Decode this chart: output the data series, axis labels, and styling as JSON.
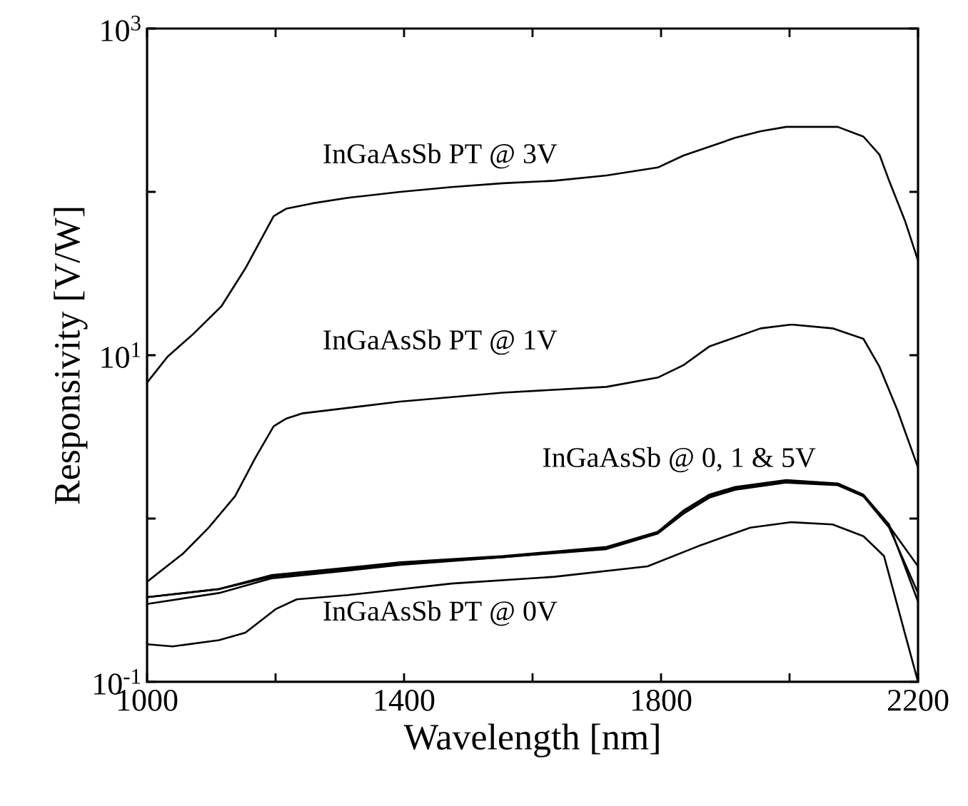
{
  "chart_data": {
    "type": "line",
    "xlabel": "Wavelength [nm]",
    "ylabel": "Responsivity [V/W]",
    "log": "y",
    "grid": false,
    "marker": "none",
    "line_style": "solid",
    "xlim": [
      1000,
      2200
    ],
    "ylim": [
      0.1,
      1000
    ],
    "xticks": [
      1000,
      {
        "value": 1200,
        "label": null
      },
      1400,
      {
        "value": 1600,
        "label": null
      },
      1800,
      {
        "value": 2000,
        "label": null
      },
      2200
    ],
    "yticks": [
      {
        "value": 0.1,
        "label": "10$^{-1}$"
      },
      {
        "value": 1,
        "label": null
      },
      {
        "value": 10,
        "label": "10$^{1}$"
      },
      {
        "value": 100,
        "label": null
      },
      {
        "value": 1000,
        "label": "10$^{3}$"
      }
    ],
    "annotations": [
      "InGaAsSb PT @ 3V",
      "InGaAsSb PT @ 1V",
      "InGaAsSb @ 0, 1 & 5V",
      "InGaAsSb PT @ 0V"
    ],
    "series": [
      {
        "color": "#000000",
        "x": [
          1000,
          1032,
          1072,
          1116,
          1153,
          1197,
          1217,
          1257,
          1313,
          1394,
          1474,
          1554,
          1634,
          1715,
          1795,
          1835,
          1875,
          1915,
          1955,
          1995,
          2075,
          2115,
          2140,
          2155,
          2180,
          2200
        ],
        "values": [
          6.8,
          9.8,
          13.5,
          20,
          34,
          71,
          79,
          85,
          92,
          100,
          107,
          113,
          117,
          126,
          141,
          167,
          189,
          214,
          235,
          250,
          250,
          218,
          169,
          117,
          66,
          38
        ]
      },
      {
        "color": "#000000",
        "x": [
          1000,
          1056,
          1096,
          1137,
          1169,
          1197,
          1217,
          1241,
          1394,
          1554,
          1715,
          1795,
          1835,
          1875,
          1955,
          2003,
          2067,
          2115,
          2140,
          2168,
          2200
        ],
        "values": [
          0.41,
          0.61,
          0.88,
          1.37,
          2.37,
          3.67,
          4.1,
          4.4,
          5.2,
          5.9,
          6.4,
          7.3,
          8.7,
          11.3,
          14.6,
          15.4,
          14.6,
          12.6,
          8.5,
          4.6,
          2.05
        ]
      },
      {
        "color": "#000000",
        "x": [
          1000,
          1112,
          1193,
          1313,
          1394,
          1554,
          1715,
          1795,
          1835,
          1875,
          1915,
          1995,
          2075,
          2115,
          2155,
          2200
        ],
        "values": [
          0.33,
          0.37,
          0.44,
          0.49,
          0.53,
          0.58,
          0.66,
          0.82,
          1.1,
          1.37,
          1.53,
          1.7,
          1.62,
          1.37,
          0.88,
          0.35
        ]
      },
      {
        "color": "#000000",
        "x": [
          1000,
          1112,
          1193,
          1313,
          1394,
          1554,
          1715,
          1795,
          1835,
          1875,
          1915,
          1995,
          2075,
          2115,
          2155,
          2200
        ],
        "values": [
          0.3,
          0.35,
          0.43,
          0.48,
          0.52,
          0.58,
          0.65,
          0.81,
          1.07,
          1.34,
          1.5,
          1.66,
          1.6,
          1.37,
          0.9,
          0.51
        ]
      },
      {
        "color": "#000000",
        "x": [
          1000,
          1112,
          1193,
          1313,
          1394,
          1554,
          1715,
          1795,
          1835,
          1875,
          1915,
          1995,
          2075,
          2115,
          2155,
          2200
        ],
        "values": [
          0.33,
          0.37,
          0.45,
          0.5,
          0.54,
          0.59,
          0.67,
          0.83,
          1.12,
          1.4,
          1.56,
          1.72,
          1.64,
          1.4,
          0.92,
          0.31
        ]
      },
      {
        "color": "#000000",
        "x": [
          1000,
          1040,
          1112,
          1153,
          1201,
          1233,
          1313,
          1474,
          1634,
          1779,
          1859,
          1939,
          2003,
          2067,
          2115,
          2147,
          2200
        ],
        "values": [
          0.17,
          0.165,
          0.18,
          0.2,
          0.28,
          0.32,
          0.34,
          0.4,
          0.44,
          0.51,
          0.68,
          0.88,
          0.95,
          0.92,
          0.78,
          0.59,
          0.1
        ]
      }
    ]
  }
}
